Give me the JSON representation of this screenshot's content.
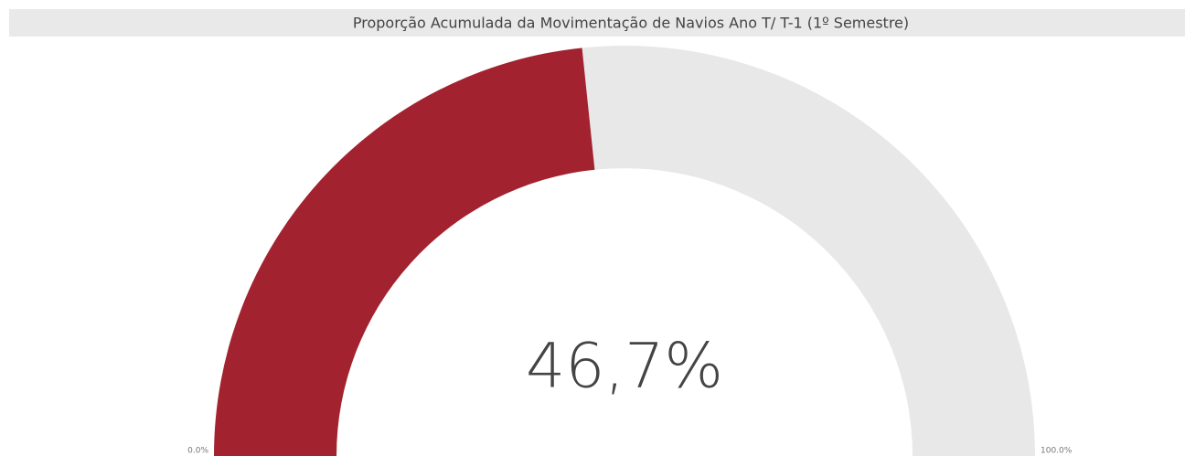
{
  "chart_data": {
    "type": "gauge",
    "title": "Proporção Acumulada da Movimentação de Navios Ano T/ T-1 (1º Semestre)",
    "values": [
      46.7
    ],
    "value_labels": [
      "46,7%"
    ],
    "color": "#a3222f",
    "track_color": "#e8e8e8",
    "ylim": [
      0,
      100
    ],
    "yticks": [
      {
        "value": 0,
        "label": "0.0%"
      },
      {
        "value": 100,
        "label": "100.0%"
      }
    ]
  }
}
